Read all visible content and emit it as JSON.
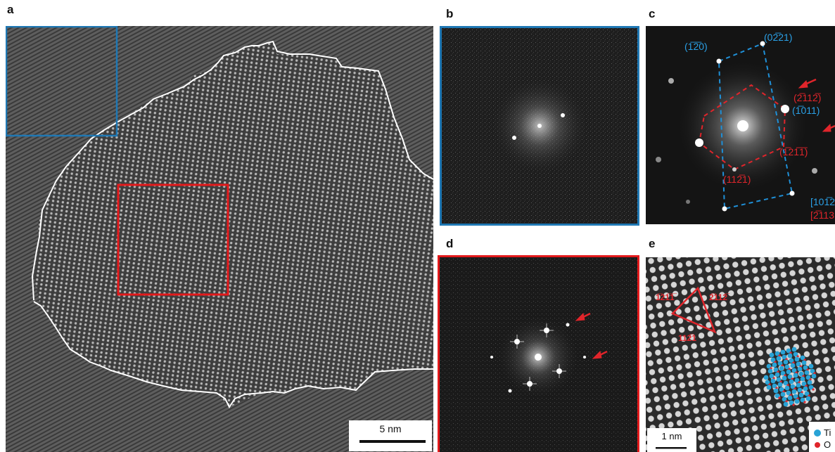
{
  "panels": {
    "a": {
      "letter": "a",
      "scalebar": "5 nm"
    },
    "b": {
      "letter": "b"
    },
    "c": {
      "letter": "c",
      "labels": {
        "blue_1": "(1̅2̅0)",
        "blue_2": "(02̅21)",
        "blue_3": "(1̅011)",
        "red_1": "(2̅112̅)",
        "red_2": "(1̅21̅1̅)",
        "red_3": "(112̅1)",
        "zone_blue": "[101̅2",
        "zone_red": "[2̅113"
      }
    },
    "d": {
      "letter": "d"
    },
    "e": {
      "letter": "e",
      "labels": {
        "top_left": "1̅21̅1̅",
        "top_right": "2̅112̅",
        "bottom": "112̅1"
      },
      "scalebar": "1 nm",
      "legend": [
        {
          "label": "Ti",
          "color": "#29a3d6"
        },
        {
          "label": "O",
          "color": "#e0252b"
        }
      ]
    }
  },
  "colors": {
    "blue_frame": "#1f78b4",
    "red_frame": "#e31a1c",
    "boundary": "#ffffff"
  }
}
